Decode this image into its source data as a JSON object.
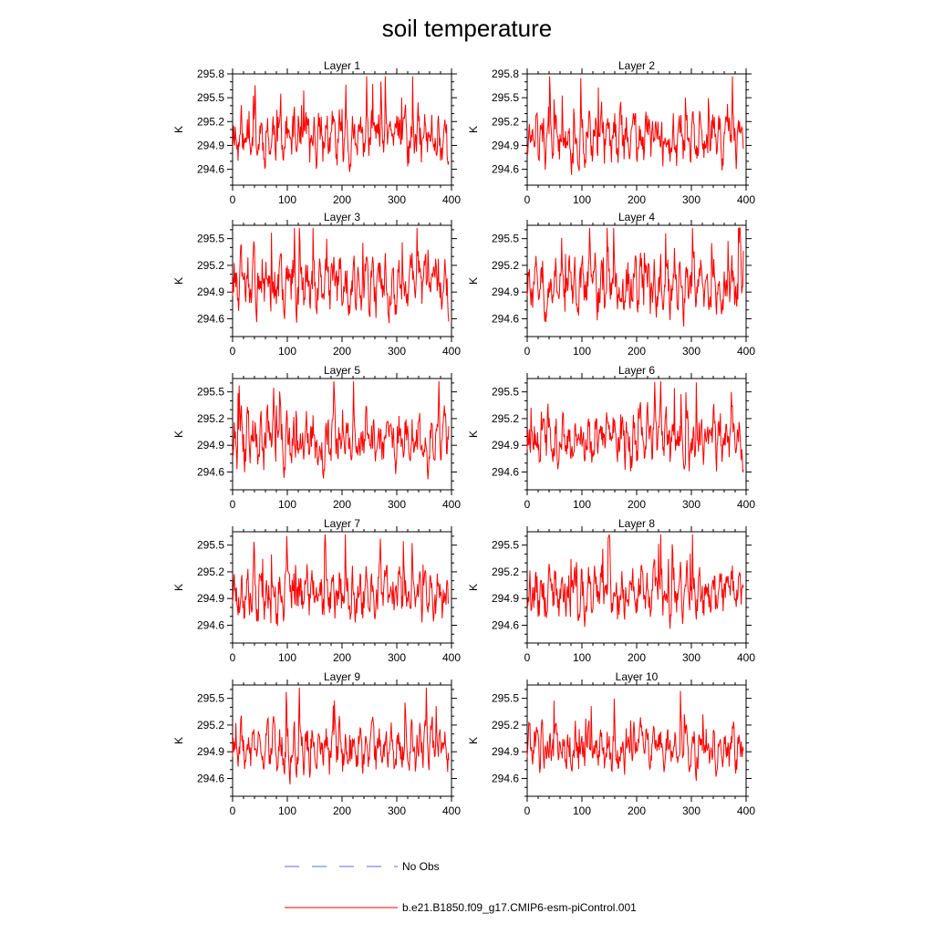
{
  "chart_data": {
    "type": "line",
    "title": "soil temperature",
    "ylabel": "K",
    "xlim": [
      0,
      400
    ],
    "xticks": [
      0,
      100,
      200,
      300,
      400
    ],
    "n_points": 396,
    "series_names": [
      "b.e21.B1850.f09_g17.CMIP6-esm-piControl.001",
      "No Obs"
    ],
    "colors": {
      "model": "#ff0000",
      "obs": "#5b6bd6"
    },
    "legend": [
      {
        "label": "No Obs",
        "style": "dashed",
        "color": "#5b6bd6"
      },
      {
        "label": "b.e21.B1850.f09_g17.CMIP6-esm-piControl.001",
        "style": "solid",
        "color": "#ff0000"
      }
    ],
    "panels": [
      {
        "title": "Layer 1",
        "ylim": [
          294.4,
          295.8
        ],
        "yticks": [
          "294.6",
          "294.9",
          "295.2",
          "295.5",
          "295.8"
        ],
        "mean": 295.0,
        "amp": 0.28,
        "seed": 11
      },
      {
        "title": "Layer 2",
        "ylim": [
          294.4,
          295.8
        ],
        "yticks": [
          "294.6",
          "294.9",
          "295.2",
          "295.5",
          "295.8"
        ],
        "mean": 295.0,
        "amp": 0.28,
        "seed": 12
      },
      {
        "title": "Layer 3",
        "ylim": [
          294.4,
          295.65
        ],
        "yticks": [
          "294.6",
          "294.9",
          "295.2",
          "295.5"
        ],
        "mean": 294.97,
        "amp": 0.27,
        "seed": 13
      },
      {
        "title": "Layer 4",
        "ylim": [
          294.4,
          295.65
        ],
        "yticks": [
          "294.6",
          "294.9",
          "295.2",
          "295.5"
        ],
        "mean": 294.97,
        "amp": 0.27,
        "seed": 14
      },
      {
        "title": "Layer 5",
        "ylim": [
          294.4,
          295.65
        ],
        "yticks": [
          "294.6",
          "294.9",
          "295.2",
          "295.5"
        ],
        "mean": 294.96,
        "amp": 0.26,
        "seed": 15
      },
      {
        "title": "Layer 6",
        "ylim": [
          294.4,
          295.65
        ],
        "yticks": [
          "294.6",
          "294.9",
          "295.2",
          "295.5"
        ],
        "mean": 294.96,
        "amp": 0.26,
        "seed": 16
      },
      {
        "title": "Layer 7",
        "ylim": [
          294.4,
          295.65
        ],
        "yticks": [
          "294.6",
          "294.9",
          "295.2",
          "295.5"
        ],
        "mean": 294.95,
        "amp": 0.25,
        "seed": 17
      },
      {
        "title": "Layer 8",
        "ylim": [
          294.4,
          295.65
        ],
        "yticks": [
          "294.6",
          "294.9",
          "295.2",
          "295.5"
        ],
        "mean": 294.95,
        "amp": 0.24,
        "seed": 18
      },
      {
        "title": "Layer 9",
        "ylim": [
          294.4,
          295.65
        ],
        "yticks": [
          "294.6",
          "294.9",
          "295.2",
          "295.5"
        ],
        "mean": 294.94,
        "amp": 0.23,
        "seed": 19
      },
      {
        "title": "Layer 10",
        "ylim": [
          294.4,
          295.65
        ],
        "yticks": [
          "294.6",
          "294.9",
          "295.2",
          "295.5"
        ],
        "mean": 294.93,
        "amp": 0.22,
        "seed": 20
      }
    ]
  }
}
